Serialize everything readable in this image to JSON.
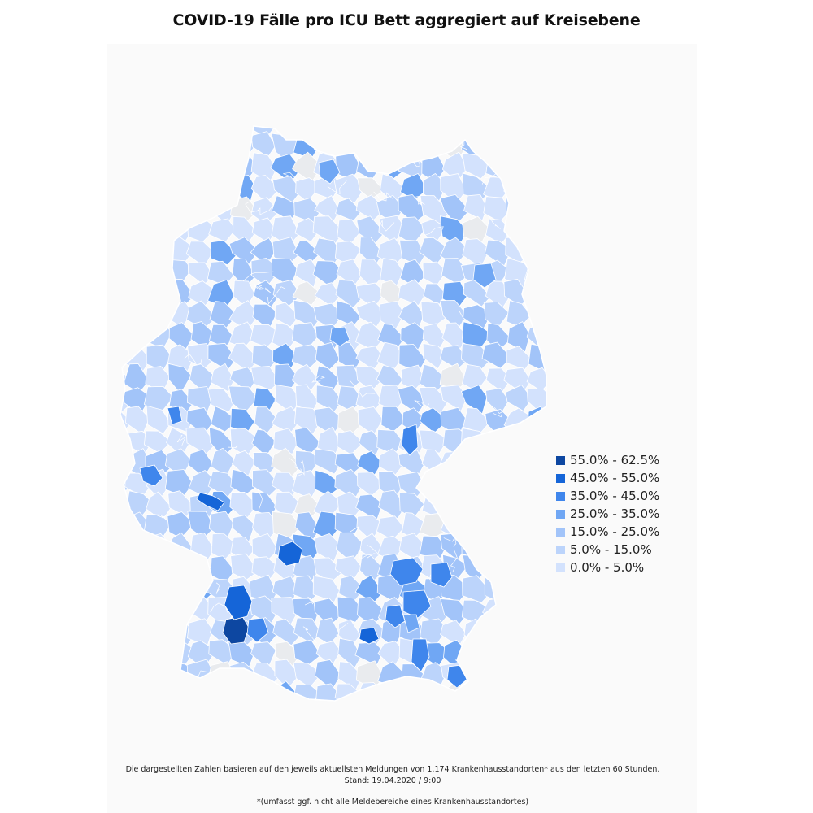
{
  "title": "COVID-19 Fälle pro ICU Bett aggregiert auf Kreisebene",
  "legend": [
    {
      "label": "55.0% - 62.5%",
      "color": "#0d47a1"
    },
    {
      "label": "45.0% - 55.0%",
      "color": "#1565d8"
    },
    {
      "label": "35.0% - 45.0%",
      "color": "#3f86ec"
    },
    {
      "label": "25.0% - 35.0%",
      "color": "#70a7f4"
    },
    {
      "label": "15.0% - 25.0%",
      "color": "#a2c4f9"
    },
    {
      "label": "5.0% - 15.0%",
      "color": "#bcd4fb"
    },
    {
      "label": "0.0% - 5.0%",
      "color": "#d3e2fd"
    }
  ],
  "map": {
    "region": "Germany",
    "no_data_color": "#e9ebee",
    "border_color": "#ffffff"
  },
  "footnotes": {
    "line1": "Die dargestellten Zahlen basieren auf den jeweils aktuellsten Meldungen von 1.174 Krankenhausstandorten* aus den letzten 60 Stunden.",
    "line2": "Stand: 19.04.2020 / 9:00",
    "line3": "*(umfasst ggf. nicht alle Meldebereiche eines Krankenhausstandortes)"
  }
}
